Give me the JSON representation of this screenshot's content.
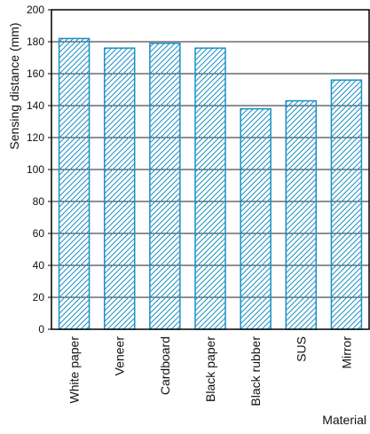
{
  "chart_data": {
    "type": "bar",
    "title": "",
    "xlabel": "Material",
    "ylabel": "Sensing distance (mm)",
    "categories": [
      "White paper",
      "Veneer",
      "Cardboard",
      "Black paper",
      "Black rubber",
      "SUS",
      "Mirror"
    ],
    "values": [
      182,
      176,
      179,
      176,
      138,
      143,
      156
    ],
    "ylim": [
      0,
      200
    ],
    "yticks": [
      0,
      20,
      40,
      60,
      80,
      100,
      120,
      140,
      160,
      180,
      200
    ],
    "grid": true,
    "legend": "none",
    "colors": {
      "bar_stroke": "#1a8fc9",
      "hatch": "#1a8fc9",
      "grid": "#222222",
      "axis": "#000000"
    }
  }
}
